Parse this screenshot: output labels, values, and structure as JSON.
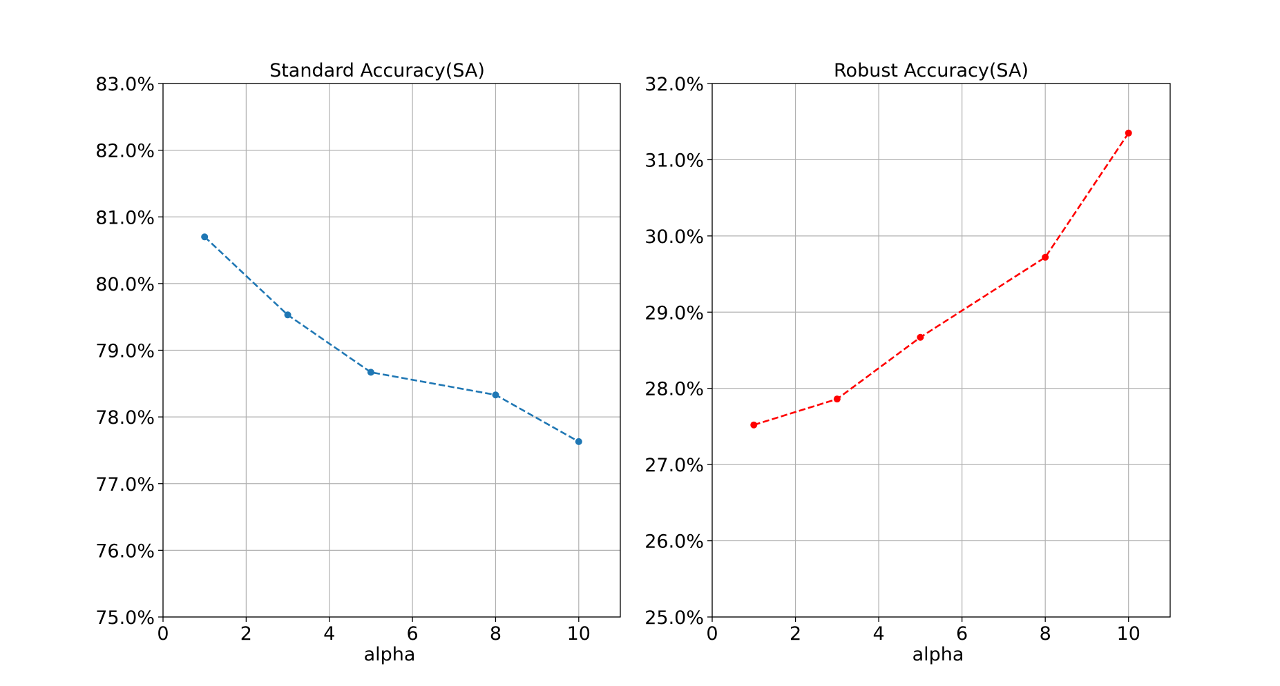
{
  "chart_data": [
    {
      "type": "line",
      "title": "Standard Accuracy(SA)",
      "xlabel": "alpha",
      "ylabel": "",
      "xlim": [
        0,
        11
      ],
      "ylim": [
        75.0,
        83.0
      ],
      "xticks": [
        0,
        2,
        4,
        6,
        8,
        10
      ],
      "xtick_labels": [
        "0",
        "2",
        "4",
        "6",
        "8",
        "10"
      ],
      "yticks": [
        75,
        76,
        77,
        78,
        79,
        80,
        81,
        82,
        83
      ],
      "ytick_labels": [
        "75.0%",
        "76.0%",
        "77.0%",
        "78.0%",
        "79.0%",
        "80.0%",
        "81.0%",
        "82.0%",
        "83.0%"
      ],
      "grid": true,
      "series": [
        {
          "x": [
            1,
            3,
            5,
            8,
            10
          ],
          "values": [
            80.7,
            79.53,
            78.67,
            78.33,
            77.63
          ],
          "color": "#1f77b4",
          "line_style": "dashed",
          "marker": "circle"
        }
      ]
    },
    {
      "type": "line",
      "title": "Robust Accuracy(SA)",
      "xlabel": "alpha",
      "ylabel": "",
      "xlim": [
        0,
        11
      ],
      "ylim": [
        25.0,
        32.0
      ],
      "xticks": [
        0,
        2,
        4,
        6,
        8,
        10
      ],
      "xtick_labels": [
        "0",
        "2",
        "4",
        "6",
        "8",
        "10"
      ],
      "yticks": [
        25,
        26,
        27,
        28,
        29,
        30,
        31,
        32
      ],
      "ytick_labels": [
        "25.0%",
        "26.0%",
        "27.0%",
        "28.0%",
        "29.0%",
        "30.0%",
        "31.0%",
        "32.0%"
      ],
      "grid": true,
      "series": [
        {
          "x": [
            1,
            3,
            5,
            8,
            10
          ],
          "values": [
            27.52,
            27.86,
            28.67,
            29.72,
            31.35
          ],
          "color": "#ff0000",
          "line_style": "dashed",
          "marker": "circle"
        }
      ]
    }
  ]
}
